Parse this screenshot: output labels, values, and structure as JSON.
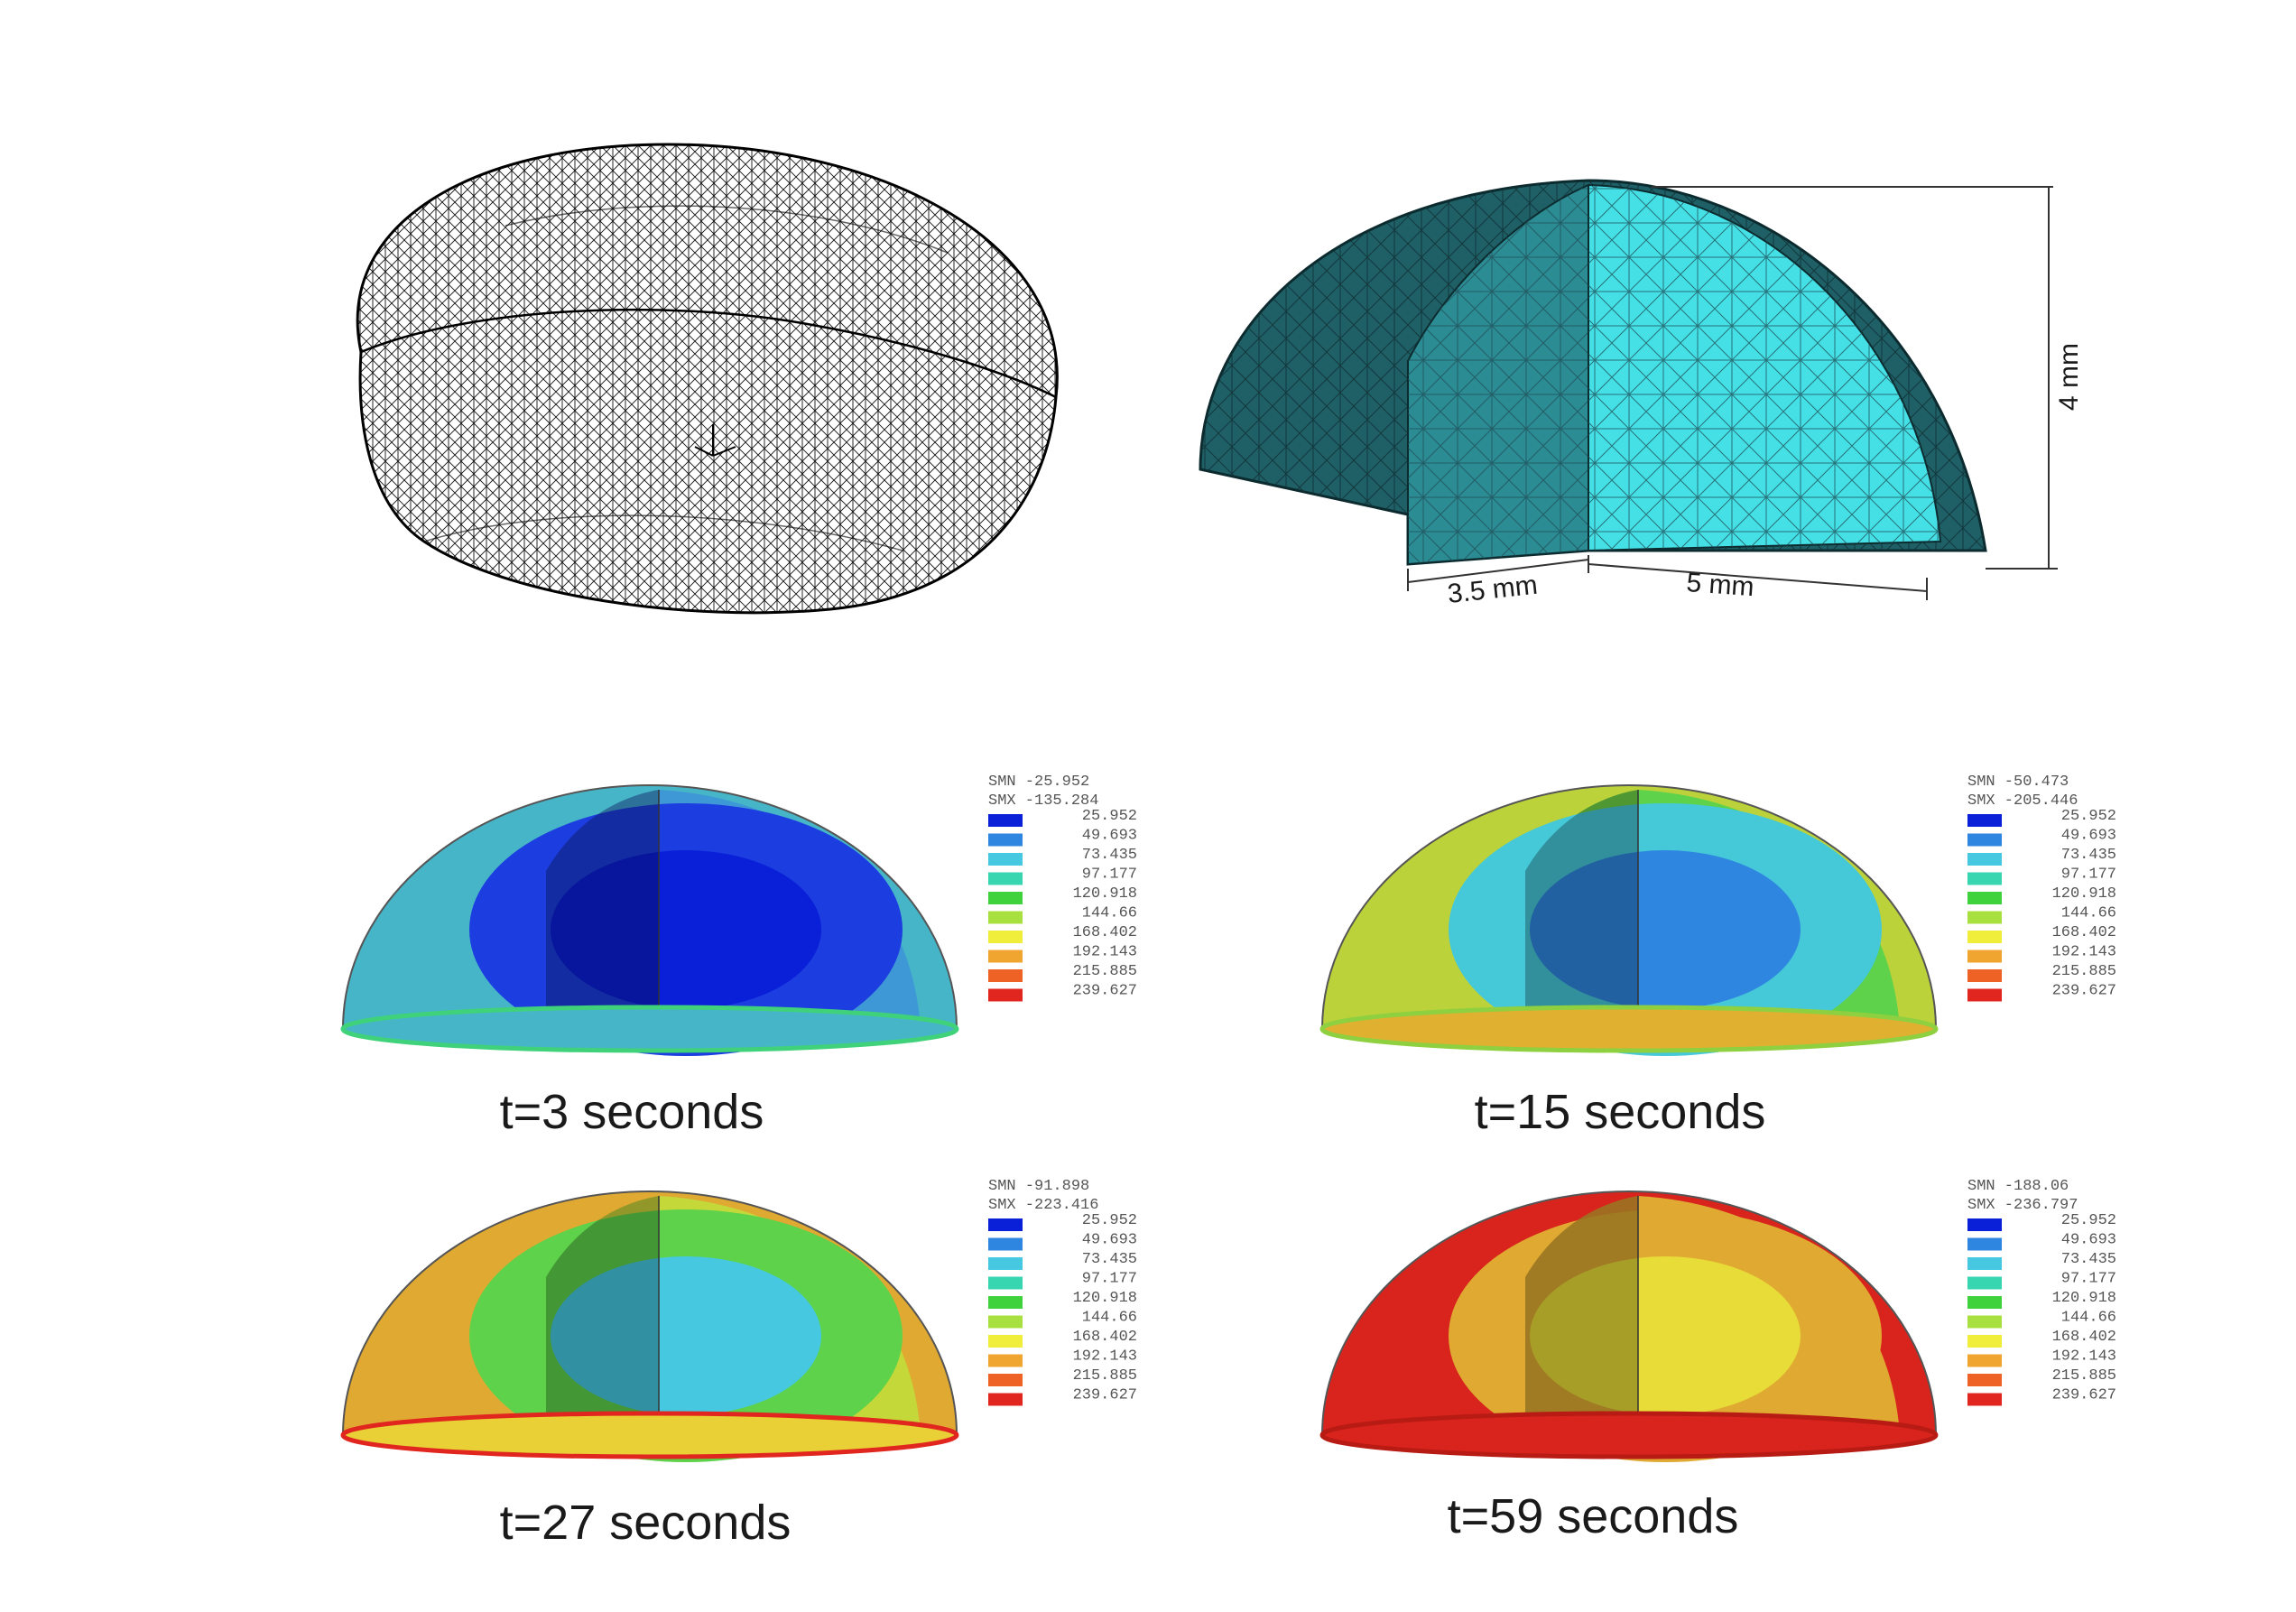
{
  "mesh": {
    "dimensions": {
      "depth": "3.5 mm",
      "length": "5 mm",
      "height": "4 mm"
    }
  },
  "legend_levels": [
    "25.952",
    "49.693",
    "73.435",
    "97.177",
    "120.918",
    "144.66",
    "168.402",
    "192.143",
    "215.885",
    "239.627"
  ],
  "legend_colors": [
    "#0a1fd8",
    "#2f86e0",
    "#45c8e0",
    "#38d6b0",
    "#3fd23c",
    "#a8e040",
    "#f0ee3a",
    "#f0a530",
    "#ef6226",
    "#e0261e"
  ],
  "panels": [
    {
      "caption": "t=3 seconds",
      "smn": "SMN -25.952",
      "smx": "SMX -135.284",
      "layers": [
        "#46b5c8",
        "#3e98d6",
        "#1c3de0",
        "#0a1fd8"
      ],
      "base": "#46b5c8",
      "rim": "#3fd27a"
    },
    {
      "caption": "t=15 seconds",
      "smn": "SMN -50.473",
      "smx": "SMX -205.446",
      "layers": [
        "#bcd23a",
        "#5ed24a",
        "#45c8d8",
        "#2f86e0"
      ],
      "base": "#e0b030",
      "rim": "#8fd040"
    },
    {
      "caption": "t=27 seconds",
      "smn": "SMN -91.898",
      "smx": "SMX -223.416",
      "layers": [
        "#e0a932",
        "#c4d83a",
        "#5ed24a",
        "#45c8e0"
      ],
      "base": "#e8d036",
      "rim": "#e0261e"
    },
    {
      "caption": "t=59 seconds",
      "smn": "SMN -188.06",
      "smx": "SMX -236.797",
      "layers": [
        "#d8241c",
        "#e0a932",
        "#e0a932",
        "#e8dc38"
      ],
      "base": "#d8241c",
      "rim": "#b81a14"
    }
  ]
}
